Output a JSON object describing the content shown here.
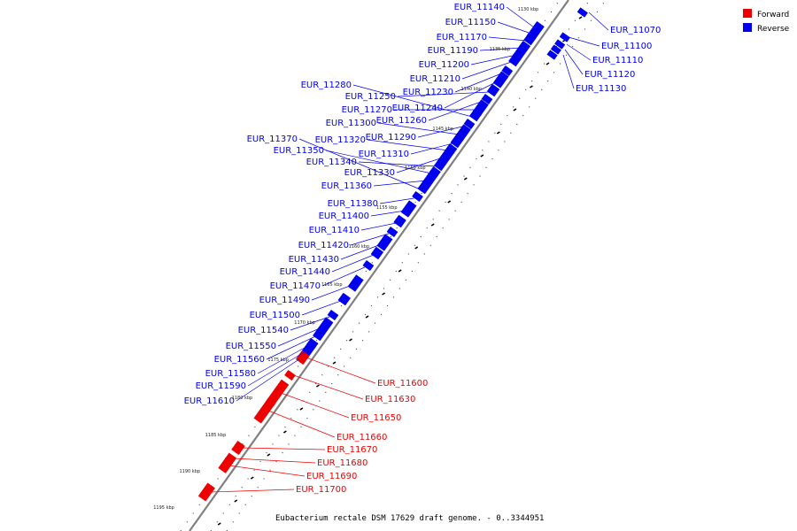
{
  "caption": "Eubacterium rectale DSM 17629 draft genome. - 0..3344951",
  "legend": [
    {
      "label": "Forward",
      "color": "#ee0000"
    },
    {
      "label": "Reverse",
      "color": "#0000ee"
    }
  ],
  "colors": {
    "forward": "#ee0000",
    "reverse": "#0000ee",
    "backbone": "#808080"
  },
  "ticks": [
    "1130 kbp",
    "1135 kbp",
    "1140 kbp",
    "1145 kbp",
    "1150 kbp",
    "1155 kbp",
    "1160 kbp",
    "1165 kbp",
    "1170 kbp",
    "1175 kbp",
    "1180 kbp",
    "1185 kbp",
    "1190 kbp",
    "1195 kbp"
  ],
  "reverse_genes": [
    "EUR_11070",
    "EUR_11100",
    "EUR_11110",
    "EUR_11120",
    "EUR_11130",
    "EUR_11140",
    "EUR_11150",
    "EUR_11170",
    "EUR_11190",
    "EUR_11200",
    "EUR_11210",
    "EUR_11230",
    "EUR_11240",
    "EUR_11250",
    "EUR_11260",
    "EUR_11270",
    "EUR_11280",
    "EUR_11290",
    "EUR_11300",
    "EUR_11310",
    "EUR_11320",
    "EUR_11330",
    "EUR_11340",
    "EUR_11350",
    "EUR_11360",
    "EUR_11370",
    "EUR_11380",
    "EUR_11400",
    "EUR_11410",
    "EUR_11420",
    "EUR_11430",
    "EUR_11440",
    "EUR_11470",
    "EUR_11490",
    "EUR_11500",
    "EUR_11540",
    "EUR_11550",
    "EUR_11560",
    "EUR_11580",
    "EUR_11590",
    "EUR_11610"
  ],
  "forward_genes": [
    "EUR_11600",
    "EUR_11630",
    "EUR_11650",
    "EUR_11660",
    "EUR_11670",
    "EUR_11680",
    "EUR_11690",
    "EUR_11700"
  ]
}
